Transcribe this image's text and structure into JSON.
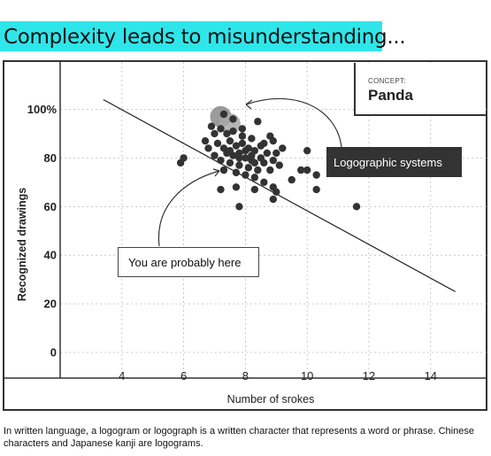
{
  "title": "Complexity leads to misunderstanding...",
  "concept": {
    "label": "CONCEPT:",
    "value": "Panda"
  },
  "annotations": {
    "logographic": "Logographic systems",
    "you_are_here": "You are probably here"
  },
  "caption": "In written language, a logogram or logograph is a written character that represents a word or phrase. Chinese characters and Japanese kanji are logograms.",
  "chart_data": {
    "type": "scatter",
    "title": "",
    "xlabel": "Number of srokes",
    "ylabel": "Recognized drawings",
    "xlim": [
      2,
      16
    ],
    "ylim": [
      -8,
      110
    ],
    "x_ticks": [
      4,
      6,
      8,
      10,
      12,
      14
    ],
    "y_ticks": [
      0,
      20,
      40,
      60,
      80,
      100
    ],
    "y_tick_labels": [
      "0",
      "20",
      "40",
      "60",
      "80",
      "100%"
    ],
    "grid": true,
    "grid_style": "dashed",
    "point_color": "#333333",
    "trendline": {
      "x": [
        3.4,
        14.8
      ],
      "y": [
        104,
        25
      ]
    },
    "highlight": [
      {
        "x": 7.2,
        "y": 97,
        "color": "#8a8a8a"
      },
      {
        "x": 7.5,
        "y": 94,
        "color": "#a8a8a8"
      }
    ],
    "points": [
      {
        "x": 7.3,
        "y": 98
      },
      {
        "x": 7.6,
        "y": 96
      },
      {
        "x": 7.2,
        "y": 92
      },
      {
        "x": 7.4,
        "y": 90
      },
      {
        "x": 7.6,
        "y": 91
      },
      {
        "x": 7.9,
        "y": 89
      },
      {
        "x": 8.2,
        "y": 88
      },
      {
        "x": 8.4,
        "y": 95
      },
      {
        "x": 7.0,
        "y": 90
      },
      {
        "x": 7.1,
        "y": 86
      },
      {
        "x": 7.3,
        "y": 84
      },
      {
        "x": 7.5,
        "y": 87
      },
      {
        "x": 7.7,
        "y": 85
      },
      {
        "x": 7.9,
        "y": 86
      },
      {
        "x": 8.1,
        "y": 84
      },
      {
        "x": 8.3,
        "y": 83
      },
      {
        "x": 7.4,
        "y": 82
      },
      {
        "x": 7.6,
        "y": 81
      },
      {
        "x": 7.8,
        "y": 82
      },
      {
        "x": 8.0,
        "y": 80
      },
      {
        "x": 8.2,
        "y": 79
      },
      {
        "x": 8.5,
        "y": 85
      },
      {
        "x": 8.7,
        "y": 82
      },
      {
        "x": 8.8,
        "y": 89
      },
      {
        "x": 8.9,
        "y": 87
      },
      {
        "x": 9.2,
        "y": 84
      },
      {
        "x": 7.2,
        "y": 79
      },
      {
        "x": 7.5,
        "y": 78
      },
      {
        "x": 7.8,
        "y": 77
      },
      {
        "x": 8.1,
        "y": 76
      },
      {
        "x": 8.4,
        "y": 75
      },
      {
        "x": 8.6,
        "y": 78
      },
      {
        "x": 8.9,
        "y": 79
      },
      {
        "x": 9.1,
        "y": 77
      },
      {
        "x": 7.0,
        "y": 81
      },
      {
        "x": 6.8,
        "y": 84
      },
      {
        "x": 6.7,
        "y": 87
      },
      {
        "x": 6.9,
        "y": 93
      },
      {
        "x": 7.3,
        "y": 75
      },
      {
        "x": 7.7,
        "y": 74
      },
      {
        "x": 8.0,
        "y": 73
      },
      {
        "x": 8.3,
        "y": 72
      },
      {
        "x": 8.8,
        "y": 75
      },
      {
        "x": 9.5,
        "y": 71
      },
      {
        "x": 9.8,
        "y": 75
      },
      {
        "x": 10.0,
        "y": 83
      },
      {
        "x": 10.0,
        "y": 75
      },
      {
        "x": 10.3,
        "y": 73
      },
      {
        "x": 10.3,
        "y": 67
      },
      {
        "x": 6.0,
        "y": 80
      },
      {
        "x": 5.9,
        "y": 78
      },
      {
        "x": 7.2,
        "y": 67
      },
      {
        "x": 7.7,
        "y": 68
      },
      {
        "x": 8.3,
        "y": 67
      },
      {
        "x": 8.6,
        "y": 70
      },
      {
        "x": 8.9,
        "y": 68
      },
      {
        "x": 8.9,
        "y": 63
      },
      {
        "x": 7.8,
        "y": 60
      },
      {
        "x": 11.6,
        "y": 60
      },
      {
        "x": 9.0,
        "y": 66
      },
      {
        "x": 7.5,
        "y": 83
      },
      {
        "x": 7.8,
        "y": 80
      },
      {
        "x": 8.0,
        "y": 83
      },
      {
        "x": 8.2,
        "y": 81
      },
      {
        "x": 8.5,
        "y": 80
      },
      {
        "x": 7.9,
        "y": 92
      },
      {
        "x": 8.6,
        "y": 86
      },
      {
        "x": 9.0,
        "y": 82
      },
      {
        "x": 8.3,
        "y": 78
      }
    ]
  }
}
